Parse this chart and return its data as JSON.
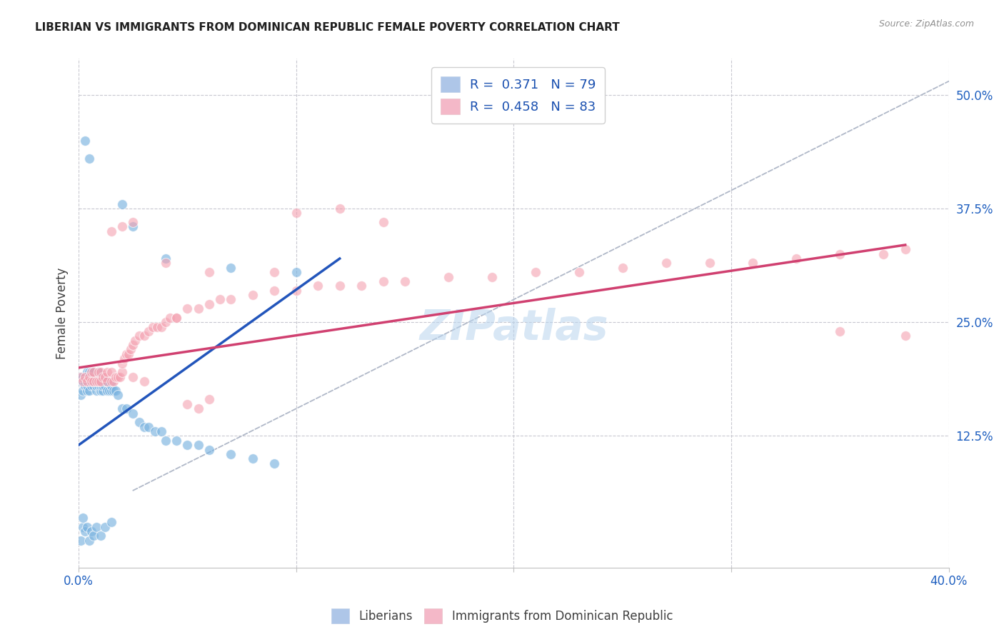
{
  "title": "LIBERIAN VS IMMIGRANTS FROM DOMINICAN REPUBLIC FEMALE POVERTY CORRELATION CHART",
  "source": "Source: ZipAtlas.com",
  "ylabel": "Female Poverty",
  "ytick_vals": [
    0.125,
    0.25,
    0.375,
    0.5
  ],
  "ytick_labels": [
    "12.5%",
    "25.0%",
    "37.5%",
    "50.0%"
  ],
  "xtick_vals": [
    0.0,
    0.1,
    0.2,
    0.3,
    0.4
  ],
  "xtick_labels": [
    "0.0%",
    "",
    "",
    "",
    "40.0%"
  ],
  "xlim": [
    0.0,
    0.4
  ],
  "ylim": [
    -0.02,
    0.54
  ],
  "legend_entries": [
    {
      "label": "R =  0.371   N = 79",
      "color": "#aec6e8"
    },
    {
      "label": "R =  0.458   N = 83",
      "color": "#f4b8c8"
    }
  ],
  "legend_label1": "Liberians",
  "legend_label2": "Immigrants from Dominican Republic",
  "watermark": "ZIPatlas",
  "blue_scatter": [
    [
      0.001,
      0.185
    ],
    [
      0.001,
      0.17
    ],
    [
      0.001,
      0.19
    ],
    [
      0.002,
      0.175
    ],
    [
      0.002,
      0.185
    ],
    [
      0.002,
      0.19
    ],
    [
      0.003,
      0.18
    ],
    [
      0.003,
      0.185
    ],
    [
      0.003,
      0.19
    ],
    [
      0.004,
      0.175
    ],
    [
      0.004,
      0.18
    ],
    [
      0.004,
      0.185
    ],
    [
      0.004,
      0.195
    ],
    [
      0.005,
      0.175
    ],
    [
      0.005,
      0.185
    ],
    [
      0.005,
      0.19
    ],
    [
      0.005,
      0.195
    ],
    [
      0.006,
      0.18
    ],
    [
      0.006,
      0.185
    ],
    [
      0.006,
      0.19
    ],
    [
      0.006,
      0.195
    ],
    [
      0.007,
      0.18
    ],
    [
      0.007,
      0.185
    ],
    [
      0.007,
      0.19
    ],
    [
      0.007,
      0.195
    ],
    [
      0.008,
      0.175
    ],
    [
      0.008,
      0.18
    ],
    [
      0.008,
      0.185
    ],
    [
      0.008,
      0.19
    ],
    [
      0.009,
      0.18
    ],
    [
      0.009,
      0.185
    ],
    [
      0.009,
      0.195
    ],
    [
      0.01,
      0.175
    ],
    [
      0.01,
      0.18
    ],
    [
      0.01,
      0.185
    ],
    [
      0.01,
      0.19
    ],
    [
      0.011,
      0.175
    ],
    [
      0.011,
      0.18
    ],
    [
      0.012,
      0.18
    ],
    [
      0.012,
      0.185
    ],
    [
      0.013,
      0.175
    ],
    [
      0.013,
      0.185
    ],
    [
      0.014,
      0.175
    ],
    [
      0.015,
      0.175
    ],
    [
      0.015,
      0.18
    ],
    [
      0.016,
      0.175
    ],
    [
      0.017,
      0.175
    ],
    [
      0.018,
      0.17
    ],
    [
      0.02,
      0.155
    ],
    [
      0.022,
      0.155
    ],
    [
      0.025,
      0.15
    ],
    [
      0.028,
      0.14
    ],
    [
      0.03,
      0.135
    ],
    [
      0.032,
      0.135
    ],
    [
      0.035,
      0.13
    ],
    [
      0.038,
      0.13
    ],
    [
      0.04,
      0.12
    ],
    [
      0.045,
      0.12
    ],
    [
      0.05,
      0.115
    ],
    [
      0.055,
      0.115
    ],
    [
      0.06,
      0.11
    ],
    [
      0.07,
      0.105
    ],
    [
      0.08,
      0.1
    ],
    [
      0.09,
      0.095
    ],
    [
      0.001,
      0.01
    ],
    [
      0.002,
      0.025
    ],
    [
      0.002,
      0.035
    ],
    [
      0.003,
      0.02
    ],
    [
      0.004,
      0.025
    ],
    [
      0.005,
      0.01
    ],
    [
      0.006,
      0.02
    ],
    [
      0.007,
      0.015
    ],
    [
      0.008,
      0.025
    ],
    [
      0.01,
      0.015
    ],
    [
      0.012,
      0.025
    ],
    [
      0.015,
      0.03
    ],
    [
      0.003,
      0.45
    ],
    [
      0.005,
      0.43
    ],
    [
      0.02,
      0.38
    ],
    [
      0.025,
      0.355
    ],
    [
      0.04,
      0.32
    ],
    [
      0.07,
      0.31
    ],
    [
      0.1,
      0.305
    ]
  ],
  "pink_scatter": [
    [
      0.001,
      0.19
    ],
    [
      0.002,
      0.185
    ],
    [
      0.003,
      0.19
    ],
    [
      0.004,
      0.185
    ],
    [
      0.005,
      0.19
    ],
    [
      0.006,
      0.185
    ],
    [
      0.006,
      0.195
    ],
    [
      0.007,
      0.185
    ],
    [
      0.007,
      0.195
    ],
    [
      0.008,
      0.185
    ],
    [
      0.009,
      0.185
    ],
    [
      0.009,
      0.195
    ],
    [
      0.01,
      0.185
    ],
    [
      0.01,
      0.195
    ],
    [
      0.011,
      0.19
    ],
    [
      0.012,
      0.19
    ],
    [
      0.013,
      0.185
    ],
    [
      0.013,
      0.195
    ],
    [
      0.015,
      0.185
    ],
    [
      0.015,
      0.195
    ],
    [
      0.016,
      0.185
    ],
    [
      0.017,
      0.19
    ],
    [
      0.018,
      0.19
    ],
    [
      0.019,
      0.19
    ],
    [
      0.02,
      0.195
    ],
    [
      0.02,
      0.205
    ],
    [
      0.021,
      0.21
    ],
    [
      0.022,
      0.215
    ],
    [
      0.023,
      0.215
    ],
    [
      0.024,
      0.22
    ],
    [
      0.025,
      0.225
    ],
    [
      0.026,
      0.23
    ],
    [
      0.028,
      0.235
    ],
    [
      0.03,
      0.235
    ],
    [
      0.032,
      0.24
    ],
    [
      0.034,
      0.245
    ],
    [
      0.036,
      0.245
    ],
    [
      0.038,
      0.245
    ],
    [
      0.04,
      0.25
    ],
    [
      0.042,
      0.255
    ],
    [
      0.045,
      0.255
    ],
    [
      0.05,
      0.265
    ],
    [
      0.055,
      0.265
    ],
    [
      0.06,
      0.27
    ],
    [
      0.065,
      0.275
    ],
    [
      0.07,
      0.275
    ],
    [
      0.08,
      0.28
    ],
    [
      0.09,
      0.285
    ],
    [
      0.1,
      0.285
    ],
    [
      0.11,
      0.29
    ],
    [
      0.12,
      0.29
    ],
    [
      0.13,
      0.29
    ],
    [
      0.14,
      0.295
    ],
    [
      0.15,
      0.295
    ],
    [
      0.17,
      0.3
    ],
    [
      0.19,
      0.3
    ],
    [
      0.21,
      0.305
    ],
    [
      0.23,
      0.305
    ],
    [
      0.25,
      0.31
    ],
    [
      0.27,
      0.315
    ],
    [
      0.29,
      0.315
    ],
    [
      0.31,
      0.315
    ],
    [
      0.33,
      0.32
    ],
    [
      0.35,
      0.325
    ],
    [
      0.37,
      0.325
    ],
    [
      0.38,
      0.33
    ],
    [
      0.015,
      0.35
    ],
    [
      0.02,
      0.355
    ],
    [
      0.025,
      0.36
    ],
    [
      0.04,
      0.315
    ],
    [
      0.06,
      0.305
    ],
    [
      0.09,
      0.305
    ],
    [
      0.1,
      0.37
    ],
    [
      0.12,
      0.375
    ],
    [
      0.14,
      0.36
    ],
    [
      0.05,
      0.16
    ],
    [
      0.055,
      0.155
    ],
    [
      0.06,
      0.165
    ],
    [
      0.03,
      0.185
    ],
    [
      0.025,
      0.19
    ],
    [
      0.045,
      0.255
    ],
    [
      0.38,
      0.235
    ],
    [
      0.35,
      0.24
    ]
  ],
  "blue_line": {
    "x": [
      0.0,
      0.12
    ],
    "y": [
      0.115,
      0.32
    ]
  },
  "pink_line": {
    "x": [
      0.0,
      0.38
    ],
    "y": [
      0.2,
      0.335
    ]
  },
  "diagonal_line": {
    "x": [
      0.025,
      0.4
    ],
    "y": [
      0.065,
      0.515
    ]
  },
  "scatter_color_blue": "#7ab3e0",
  "scatter_color_pink": "#f4a0b0",
  "line_color_blue": "#2255bb",
  "line_color_pink": "#d04070",
  "diagonal_color": "#b0b8c8",
  "background_color": "#ffffff",
  "grid_color": "#c8c8d0"
}
